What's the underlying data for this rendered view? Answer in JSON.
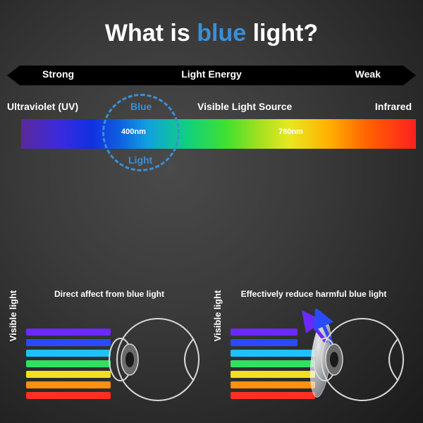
{
  "title": {
    "pre": "What is ",
    "blue": "blue",
    "post": " light?"
  },
  "energy": {
    "strong": "Strong",
    "center": "Light Energy",
    "weak": "Weak"
  },
  "spectrum": {
    "uv": "Ultraviolet (UV)",
    "visible": "Visible Light Source",
    "infrared": "Infrared",
    "blue_top": "Blue",
    "blue_bot": "Light",
    "nm_start": "400nm",
    "nm_end": "780nm",
    "gradient_stops": [
      "#5a2a9a",
      "#3a2adf",
      "#1030e0",
      "#1060e0",
      "#10a0e0",
      "#10d080",
      "#40e030",
      "#a0e020",
      "#e8e820",
      "#ffb000",
      "#ff6000",
      "#ff2020"
    ],
    "circle_color": "#3a8fd6"
  },
  "rays": {
    "colors": [
      "#6a2aff",
      "#2a4aff",
      "#20c0ff",
      "#30e060",
      "#f0e020",
      "#ff9010",
      "#ff3020"
    ]
  },
  "eye": {
    "outline": "#d8d8d8",
    "iris": "#6a6a6a",
    "pupil": "#1a1a1a"
  },
  "left": {
    "caption": "Direct affect from blue light",
    "ylabel": "Visible light"
  },
  "right": {
    "caption": "Effectively reduce harmful blue light",
    "ylabel": "Visible light"
  }
}
